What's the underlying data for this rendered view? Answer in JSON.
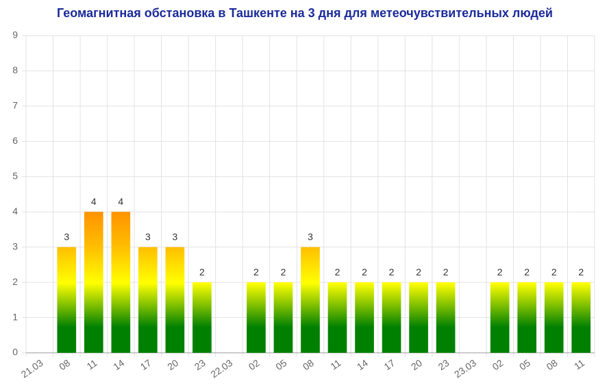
{
  "chart_data": {
    "type": "bar",
    "title": "Геомагнитная обстановка в Ташкенте на 3 дня для метеочувствительных людей",
    "categories": [
      "21.03",
      "08",
      "11",
      "14",
      "17",
      "20",
      "23",
      "22.03",
      "02",
      "05",
      "08",
      "11",
      "14",
      "17",
      "20",
      "23",
      "23.03",
      "02",
      "05",
      "08",
      "11"
    ],
    "values": [
      null,
      3,
      4,
      4,
      3,
      3,
      2,
      null,
      2,
      2,
      3,
      2,
      2,
      2,
      2,
      2,
      null,
      2,
      2,
      2,
      2
    ],
    "ylim": [
      0,
      9
    ],
    "yticks": [
      0,
      1,
      2,
      3,
      4,
      5,
      6,
      7,
      8,
      9
    ],
    "grid": true
  }
}
